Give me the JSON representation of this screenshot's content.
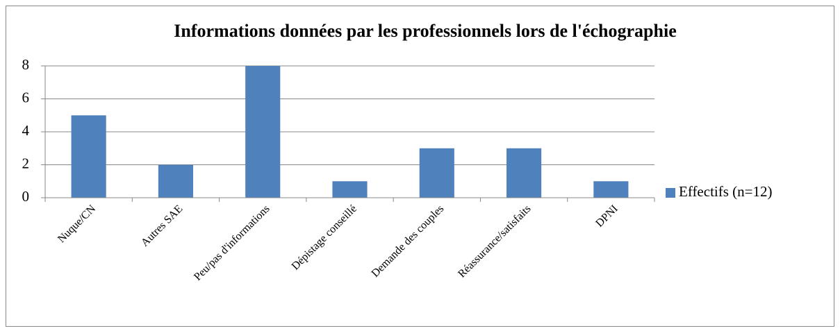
{
  "chart_data": {
    "type": "bar",
    "title": "Informations données par les professionnels lors de l'échographie",
    "categories": [
      "Nuque/CN",
      "Autres SAE",
      "Peu/pas d'informations",
      "Dépistage conseillé",
      "Demande des couples",
      "Réassurance/satisfaits",
      "DPNI"
    ],
    "series": [
      {
        "name": "Effectifs (n=12)",
        "color": "#4f81bd",
        "values": [
          5,
          2,
          8,
          1,
          3,
          3,
          1
        ]
      }
    ],
    "ylim": [
      0,
      8
    ],
    "yticks": [
      0,
      2,
      4,
      6,
      8
    ],
    "grid": true,
    "legend": "right"
  }
}
